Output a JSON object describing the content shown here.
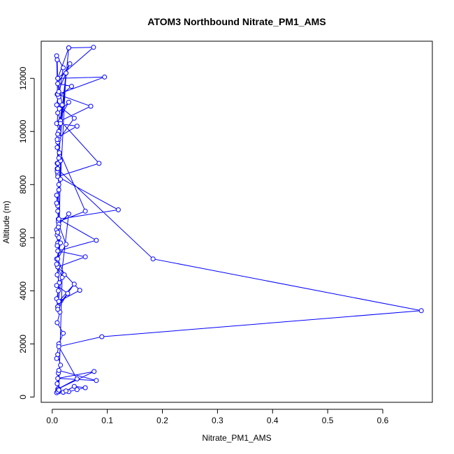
{
  "colors": {
    "series": "#0000ff",
    "axis": "#000000",
    "background": "#ffffff"
  },
  "chart_data": {
    "type": "line",
    "title": "ATOM3 Northbound Nitrate_PM1_AMS",
    "xlabel": "Nitrate_PM1_AMS",
    "ylabel": "Altitude (m)",
    "xlim": [
      -0.02,
      0.69
    ],
    "ylim": [
      -200,
      13400
    ],
    "xticks": [
      0,
      0.1,
      0.2,
      0.3,
      0.4,
      0.5,
      0.6
    ],
    "xtick_labels": [
      "0.0",
      "0.1",
      "0.2",
      "0.3",
      "0.4",
      "0.5",
      "0.6"
    ],
    "yticks": [
      0,
      2000,
      4000,
      6000,
      8000,
      10000,
      12000
    ],
    "ytick_labels": [
      "0",
      "2000",
      "4000",
      "6000",
      "8000",
      "10000",
      "12000"
    ],
    "grid": false,
    "series": [
      {
        "marker": "open-circle",
        "x": [
          0.008,
          0.01,
          0.012,
          0.009,
          0.011,
          0.015,
          0.01,
          0.008,
          0.012,
          0.02,
          0.009,
          0.014,
          0.01,
          0.008,
          0.011,
          0.013,
          0.009,
          0.01,
          0.008,
          0.012,
          0.01,
          0.009,
          0.008,
          0.011,
          0.01,
          0.009,
          0.008,
          0.012,
          0.01,
          0.009,
          0.013,
          0.01,
          0.012,
          0.009,
          0.01,
          0.03,
          0.008,
          0.045,
          0.012,
          0.01,
          0.06,
          0.011,
          0.025,
          0.009,
          0.032,
          0.01,
          0.035,
          0.012,
          0.02,
          0.008,
          0.01,
          0.04,
          0.012,
          0.025,
          0.009,
          0.03,
          0.01,
          0.018,
          0.012,
          0.009,
          0.01,
          0.03,
          0.075,
          0.01,
          0.095,
          0.01,
          0.07,
          0.015,
          0.085,
          0.01,
          0.12,
          0.012,
          0.08,
          0.01,
          0.06,
          0.01,
          0.05,
          0.012,
          0.04,
          0.01,
          0.03,
          0.012,
          0.025,
          0.01,
          0.022,
          0.008,
          0.028,
          0.01,
          0.015,
          0.009,
          0.183,
          0.67,
          0.09,
          0.012,
          0.045,
          0.01,
          0.076,
          0.01,
          0.08,
          0.012,
          0.01,
          0.012,
          0.02,
          0.03,
          0.045,
          0.06,
          0.04,
          0.025,
          0.01,
          0.012,
          0.018,
          0.008,
          0.015,
          0.01,
          0.012,
          0.009,
          0.011,
          0.01,
          0.012,
          0.008,
          0.015,
          0.01,
          0.012,
          0.009,
          0.01,
          0.015,
          0.008,
          0.012,
          0.01,
          0.009
        ],
        "y": [
          160,
          220,
          300,
          500,
          900,
          1200,
          1600,
          1450,
          2000,
          2400,
          2800,
          3200,
          3400,
          3700,
          4000,
          4300,
          4600,
          4900,
          5200,
          5500,
          5800,
          6100,
          6300,
          6700,
          7000,
          7300,
          7600,
          8000,
          8400,
          8800,
          9200,
          9600,
          10000,
          10300,
          10700,
          11100,
          10300,
          10200,
          9800,
          9400,
          7000,
          6600,
          12200,
          11400,
          12550,
          11800,
          11700,
          11300,
          12400,
          12850,
          11000,
          10500,
          9700,
          12200,
          8500,
          13150,
          12000,
          11000,
          10000,
          9700,
          8800,
          13150,
          13170,
          12000,
          12050,
          11400,
          10950,
          10400,
          8800,
          8300,
          7050,
          6700,
          5900,
          5500,
          5280,
          4900,
          4020,
          3600,
          4250,
          3400,
          6900,
          6500,
          5750,
          5200,
          4600,
          4200,
          3900,
          3300,
          8900,
          8600,
          5200,
          3250,
          2270,
          1900,
          680,
          300,
          960,
          700,
          620,
          1000,
          250,
          200,
          180,
          200,
          280,
          350,
          400,
          230,
          200,
          260,
          4500,
          5000,
          5800,
          6200,
          6000,
          5700,
          6400,
          7200,
          7800,
          7300,
          8200,
          8600,
          9000,
          9400,
          9900,
          10300,
          11000,
          11500,
          11800,
          12700
        ]
      }
    ]
  }
}
